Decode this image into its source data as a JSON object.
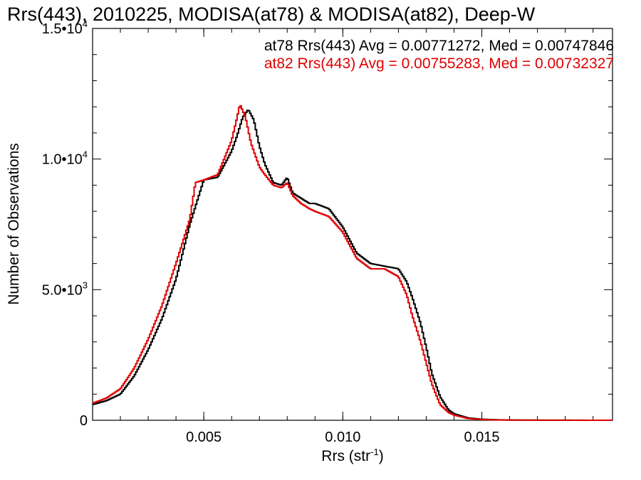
{
  "chart_data": {
    "type": "line",
    "title": "Rrs(443), 2010225, MODISA(at78) & MODISA(at82), Deep-W",
    "xlabel": "Rrs (str",
    "xlabel_sup": "-1",
    "xlabel_close": ")",
    "ylabel": "Number of Observations",
    "xlim": [
      0.001,
      0.0197
    ],
    "ylim": [
      0,
      15000
    ],
    "x_ticks": [
      {
        "value": 0.005,
        "label": "0.005"
      },
      {
        "value": 0.01,
        "label": "0.010"
      },
      {
        "value": 0.015,
        "label": "0.015"
      }
    ],
    "y_ticks": [
      {
        "value": 0,
        "mant": "0",
        "exp": ""
      },
      {
        "value": 5000,
        "mant": "5.0•10",
        "exp": "3"
      },
      {
        "value": 10000,
        "mant": "1.0•10",
        "exp": "4"
      },
      {
        "value": 15000,
        "mant": "1.5•10",
        "exp": "4"
      }
    ],
    "grid": false,
    "legend_position": "top-right",
    "series": [
      {
        "name": "at78",
        "stat": "at78 Rrs(443) Avg = 0.00771272, Med = 0.00747846",
        "color": "#000000",
        "x": [
          0.001,
          0.0015,
          0.002,
          0.0025,
          0.003,
          0.0035,
          0.004,
          0.0045,
          0.005,
          0.0055,
          0.006,
          0.0062,
          0.0064,
          0.0066,
          0.0068,
          0.007,
          0.0072,
          0.0075,
          0.0078,
          0.008,
          0.0082,
          0.0085,
          0.0088,
          0.009,
          0.0095,
          0.01,
          0.0105,
          0.011,
          0.0115,
          0.012,
          0.0123,
          0.0125,
          0.0128,
          0.013,
          0.0132,
          0.0135,
          0.0138,
          0.014,
          0.0145,
          0.015,
          0.0155,
          0.016,
          0.017,
          0.018,
          0.0197
        ],
        "y": [
          600,
          750,
          1000,
          1700,
          2700,
          3900,
          5400,
          7500,
          9200,
          9300,
          10300,
          10900,
          11600,
          11900,
          11500,
          10500,
          9800,
          9100,
          9000,
          9300,
          8700,
          8500,
          8300,
          8300,
          8100,
          7400,
          6400,
          6000,
          5900,
          5800,
          5300,
          4700,
          3700,
          2800,
          1800,
          900,
          400,
          250,
          90,
          40,
          20,
          10,
          5,
          3,
          0
        ]
      },
      {
        "name": "at82",
        "stat": "at82 Rrs(443) Avg = 0.00755283, Med = 0.00732327",
        "color": "#e00000",
        "x": [
          0.001,
          0.0015,
          0.002,
          0.0025,
          0.003,
          0.0035,
          0.004,
          0.0045,
          0.0047,
          0.005,
          0.0055,
          0.006,
          0.0062,
          0.0063,
          0.0065,
          0.0067,
          0.007,
          0.0072,
          0.0075,
          0.0078,
          0.008,
          0.0082,
          0.0085,
          0.0088,
          0.009,
          0.0095,
          0.01,
          0.0105,
          0.011,
          0.0115,
          0.012,
          0.0123,
          0.0125,
          0.0128,
          0.013,
          0.0132,
          0.0135,
          0.0138,
          0.014,
          0.0145,
          0.015,
          0.0155,
          0.016,
          0.017,
          0.018,
          0.0197
        ],
        "y": [
          650,
          850,
          1200,
          2000,
          3100,
          4400,
          6000,
          7700,
          9100,
          9200,
          9400,
          10700,
          11600,
          12100,
          11600,
          10600,
          9700,
          9400,
          9000,
          8900,
          9100,
          8600,
          8300,
          8100,
          8000,
          7800,
          7200,
          6200,
          5800,
          5800,
          5500,
          4800,
          4000,
          3000,
          2200,
          1400,
          600,
          300,
          200,
          70,
          30,
          15,
          8,
          4,
          2,
          0
        ]
      }
    ]
  }
}
